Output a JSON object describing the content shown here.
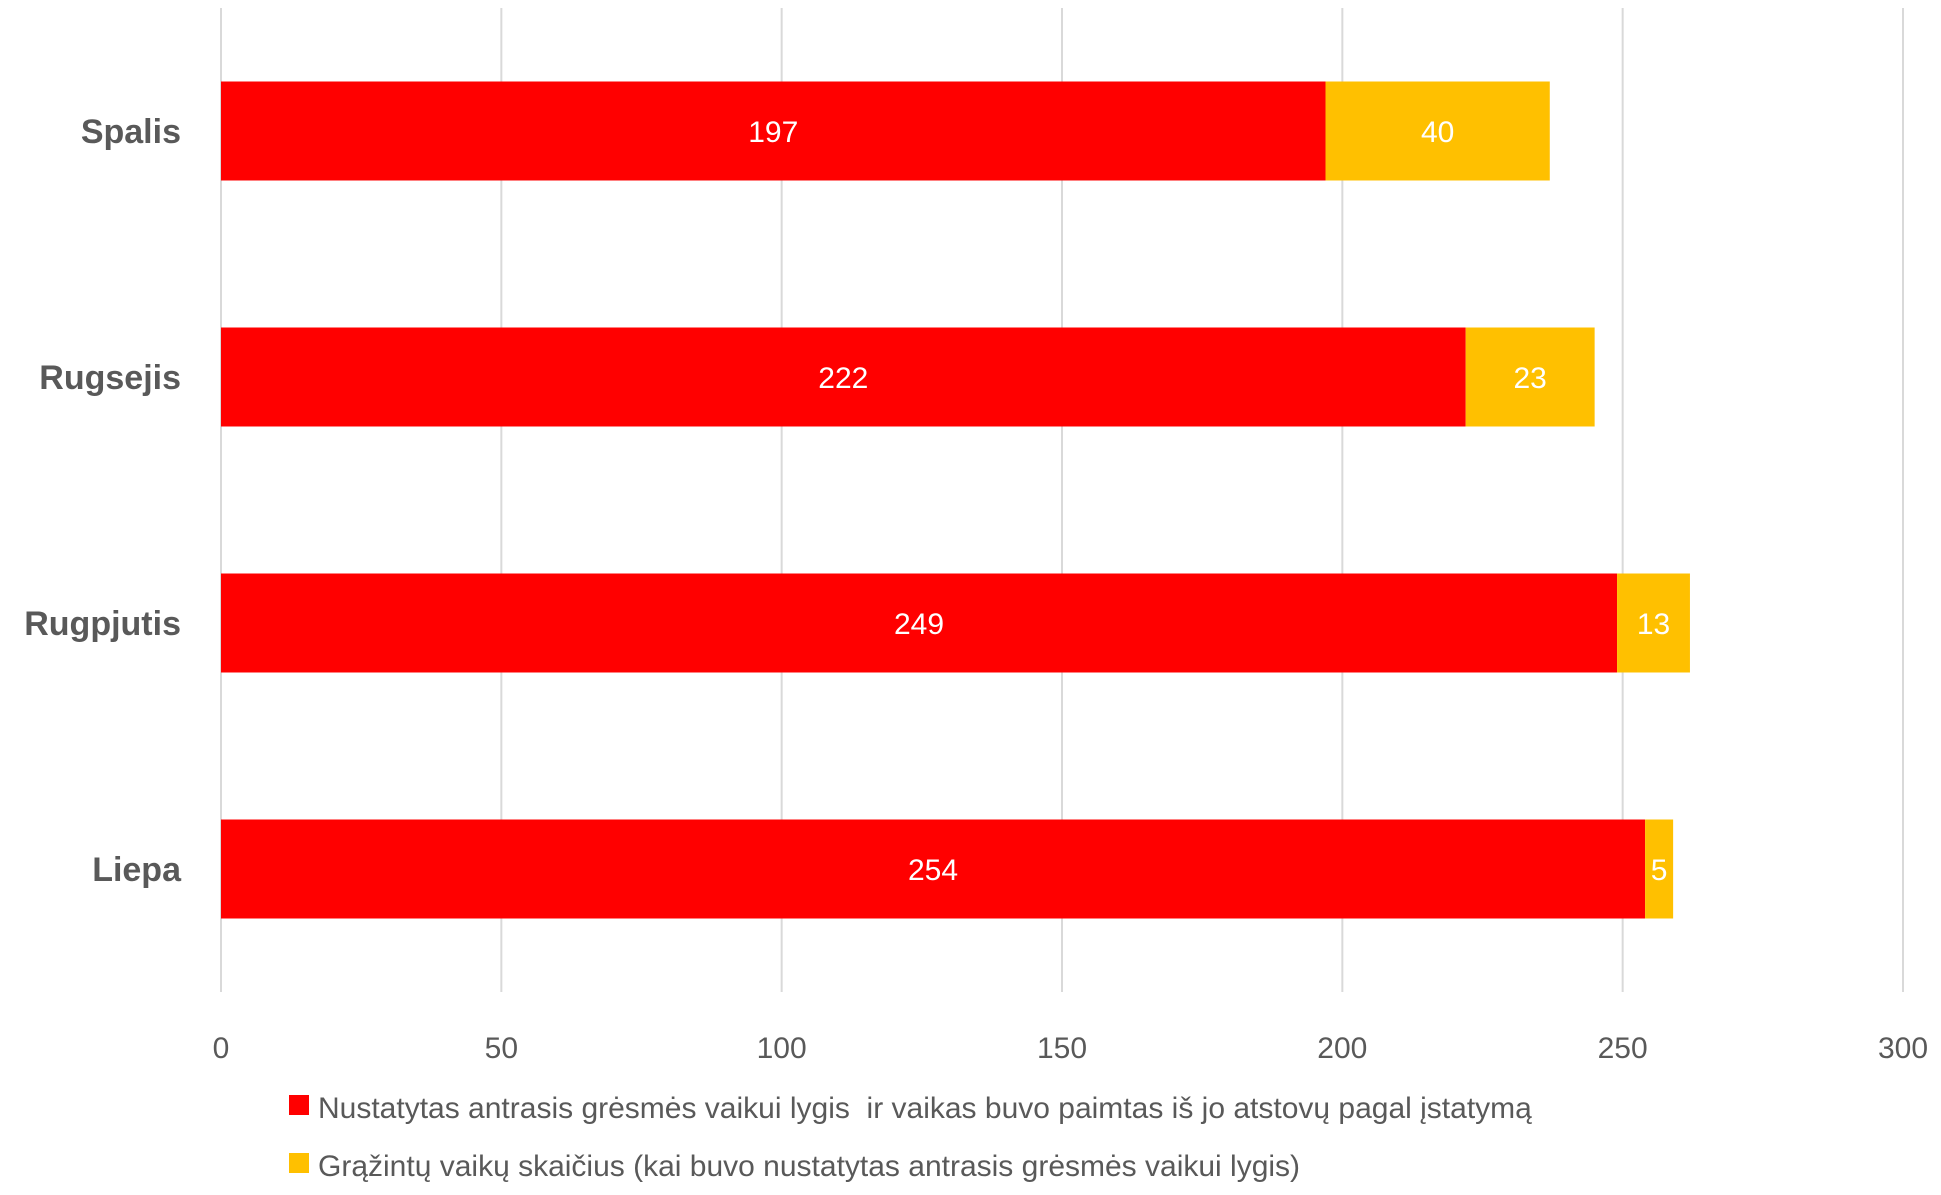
{
  "chart_data": {
    "type": "bar",
    "orientation": "horizontal",
    "stacked": true,
    "categories": [
      "Spalis",
      "Rugsejis",
      "Rugpjutis",
      "Liepa"
    ],
    "series": [
      {
        "name": "Nustatytas antrasis grėsmės vaikui lygis  ir vaikas buvo paimtas iš jo atstovų pagal įstatymą",
        "color": "#ff0000",
        "values": [
          197,
          222,
          249,
          254
        ]
      },
      {
        "name": "Grąžintų vaikų skaičius (kai buvo nustatytas antrasis grėsmės vaikui lygis)",
        "color": "#ffc000",
        "values": [
          40,
          23,
          13,
          5
        ]
      }
    ],
    "xlim": [
      0,
      300
    ],
    "xticks": [
      0,
      50,
      100,
      150,
      200,
      250,
      300
    ],
    "grid": true,
    "data_labels": true,
    "legend_position": "bottom"
  }
}
